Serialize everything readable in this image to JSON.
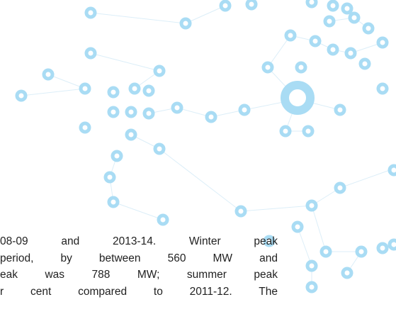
{
  "paragraph": {
    "lines": [
      "08-09 and 2013-14. Winter peak",
      "period, by between 560 MW and",
      "eak was 788 MW; summer peak",
      "r cent compared to 2011-12. The"
    ]
  }
}
